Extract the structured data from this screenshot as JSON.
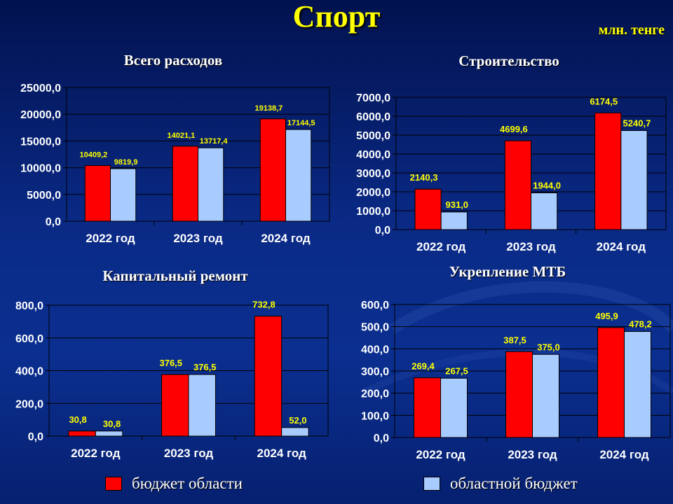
{
  "slide": {
    "title": "Спорт",
    "units": "млн. тенге"
  },
  "colors": {
    "series1": "#ff0000",
    "series2": "#a8ccff",
    "background_top": "#02124f",
    "background_bottom": "#0b2f90",
    "text": "#ffffff",
    "accent": "#ffff00"
  },
  "legend": [
    {
      "name": "бюджет области"
    },
    {
      "name": "областной бюджет"
    }
  ],
  "chart_data": [
    {
      "type": "bar",
      "title": "Всего расходов",
      "categories": [
        "2022 год",
        "2023 год",
        "2024 год"
      ],
      "series": [
        {
          "name": "бюджет области",
          "values": [
            10409.2,
            14021.1,
            19138.7
          ],
          "labels": [
            "10409,2",
            "14021,1",
            "19138,7"
          ]
        },
        {
          "name": "областной бюджет",
          "values": [
            9819.9,
            13717.4,
            17144.5
          ],
          "labels": [
            "9819,9",
            "13717,4",
            "17144,5"
          ]
        }
      ],
      "ylim": [
        0,
        25000
      ],
      "yticks": [
        "0,0",
        "5000,0",
        "10000,0",
        "15000,0",
        "20000,0",
        "25000,0"
      ],
      "grid": true,
      "xlabel": "",
      "ylabel": ""
    },
    {
      "type": "bar",
      "title": "Строительство",
      "categories": [
        "2022 год",
        "2023 год",
        "2024 год"
      ],
      "series": [
        {
          "name": "бюджет области",
          "values": [
            2140.3,
            4699.6,
            6174.5
          ],
          "labels": [
            "2140,3",
            "4699,6",
            "6174,5"
          ]
        },
        {
          "name": "областной бюджет",
          "values": [
            931.0,
            1944.0,
            5240.7
          ],
          "labels": [
            "931,0",
            "1944,0",
            "5240,7"
          ]
        }
      ],
      "ylim": [
        0,
        7000
      ],
      "yticks": [
        "0,0",
        "1000,0",
        "2000,0",
        "3000,0",
        "4000,0",
        "5000,0",
        "6000,0",
        "7000,0"
      ],
      "grid": true,
      "xlabel": "",
      "ylabel": ""
    },
    {
      "type": "bar",
      "title": "Капитальный ремонт",
      "categories": [
        "2022 год",
        "2023 год",
        "2024 год"
      ],
      "series": [
        {
          "name": "бюджет области",
          "values": [
            30.8,
            376.5,
            732.8
          ],
          "labels": [
            "30,8",
            "376,5",
            "732,8"
          ]
        },
        {
          "name": "областной бюджет",
          "values": [
            30.8,
            376.5,
            52.0
          ],
          "labels": [
            "30,8",
            "376,5",
            "52,0"
          ]
        }
      ],
      "ylim": [
        0,
        800
      ],
      "yticks": [
        "0,0",
        "200,0",
        "400,0",
        "600,0",
        "800,0"
      ],
      "grid": true,
      "xlabel": "",
      "ylabel": ""
    },
    {
      "type": "bar",
      "title": "Укрепление МТБ",
      "categories": [
        "2022 год",
        "2023 год",
        "2024 год"
      ],
      "series": [
        {
          "name": "бюджет области",
          "values": [
            269.4,
            387.5,
            495.9
          ],
          "labels": [
            "269,4",
            "387,5",
            "495,9"
          ]
        },
        {
          "name": "областной бюджет",
          "values": [
            267.5,
            375.0,
            478.2
          ],
          "labels": [
            "267,5",
            "375,0",
            "478,2"
          ]
        }
      ],
      "ylim": [
        0,
        600
      ],
      "yticks": [
        "0,0",
        "100,0",
        "200,0",
        "300,0",
        "400,0",
        "500,0",
        "600,0"
      ],
      "grid": true,
      "xlabel": "",
      "ylabel": ""
    }
  ]
}
